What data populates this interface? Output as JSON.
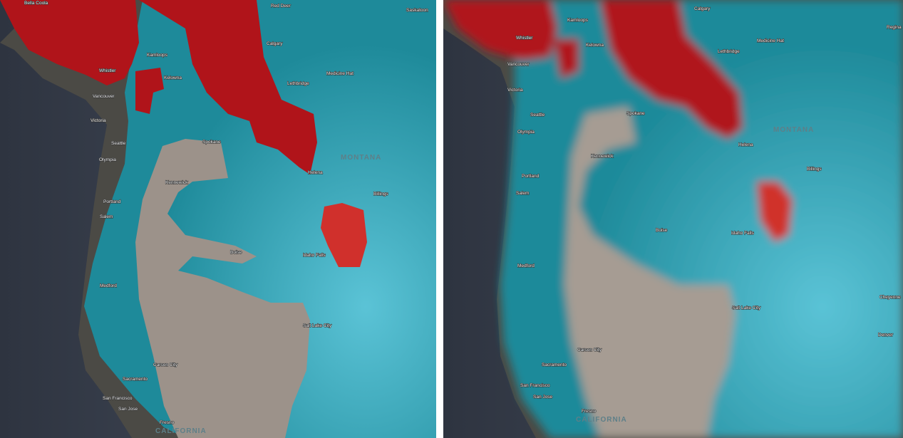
{
  "colors": {
    "ocean": "#363d4a",
    "coastal_land": "#4b4a45",
    "teal": "#1e8a9a",
    "light_cyan": "#5fd0e6",
    "red": "#b0141a",
    "beige": "#9c928a"
  },
  "left_panel": {
    "style": "sharp boundaries",
    "labels": [
      "Bella Coola",
      "Red Deer",
      "Saskatoon",
      "Calgary",
      "Kamloops",
      "Whistler",
      "Kelowna",
      "Medicine Hat",
      "Lethbridge",
      "Vancouver",
      "Victoria",
      "Seattle",
      "Spokane",
      "Olympia",
      "MONTANA",
      "Helena",
      "Kennewick",
      "Billings",
      "Portland",
      "Salem",
      "Boise",
      "Idaho Falls",
      "Medford",
      "Salt Lake City",
      "Carson City",
      "Sacramento",
      "San Francisco",
      "San Jose",
      "Fresno",
      "CALIFORNIA"
    ]
  },
  "right_panel": {
    "style": "blurred boundaries",
    "labels": [
      "Calgary",
      "Regina",
      "Kamloops",
      "Whistler",
      "Kelowna",
      "Medicine Hat",
      "Lethbridge",
      "Vancouver",
      "Victoria",
      "Seattle",
      "Spokane",
      "Olympia",
      "MONTANA",
      "Helena",
      "Kennewick",
      "Billings",
      "Portland",
      "Salem",
      "Boise",
      "Idaho Falls",
      "Medford",
      "Cheyenne",
      "Salt Lake City",
      "Denver",
      "Carson City",
      "Sacramento",
      "San Francisco",
      "San Jose",
      "Fresno",
      "CALIFORNIA"
    ]
  }
}
